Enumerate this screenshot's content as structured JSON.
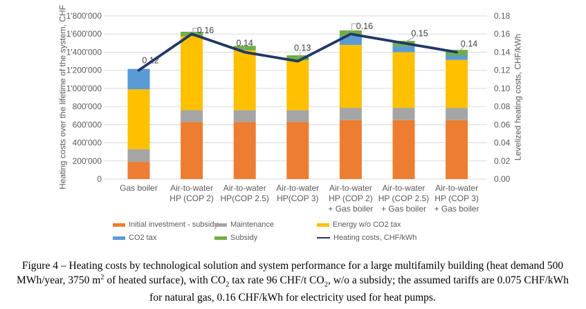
{
  "chart_data": {
    "type": "bar",
    "stacked": true,
    "line_overlay": true,
    "categories": [
      "Gas boiler",
      "Air-to-water\nHP (COP 2)",
      "Air-to-water\nHP(COP 2.5)",
      "Air-to-water\nHP(COP 3)",
      "Air-to-water\nHP (COP 2)\n+ Gas boiler",
      "Air-to-water\nHP (COP 2.5)\n+ Gas boiler",
      "Air-to-water\nHP (COP 3)\n+ Gas boiler"
    ],
    "series": [
      {
        "name": "Initial investment - subsidy",
        "color": "#ED7D31",
        "values": [
          190000,
          630000,
          630000,
          630000,
          650000,
          650000,
          650000
        ]
      },
      {
        "name": "Maintenance",
        "color": "#A5A5A5",
        "values": [
          140000,
          130000,
          130000,
          130000,
          135000,
          135000,
          135000
        ]
      },
      {
        "name": "Energy w/o CO2 tax",
        "color": "#FFC000",
        "values": [
          660000,
          815000,
          660000,
          550000,
          695000,
          615000,
          530000
        ]
      },
      {
        "name": "CO2 tax",
        "color": "#5B9BD5",
        "values": [
          225000,
          0,
          0,
          0,
          100000,
          65000,
          50000
        ]
      },
      {
        "name": "Subsidy",
        "color": "#70AD47",
        "values": [
          0,
          50000,
          50000,
          55000,
          60000,
          60000,
          60000
        ]
      }
    ],
    "bar_totals": [
      1215000,
      1625000,
      1470000,
      1365000,
      1640000,
      1525000,
      1425000
    ],
    "line_series": {
      "name": "Heating costs, CHF/kWh",
      "color": "#203864",
      "values": [
        0.12,
        0.16,
        0.14,
        0.13,
        0.16,
        0.15,
        0.14
      ],
      "labels": [
        "0.12",
        "0.16",
        "0.14",
        "0.13",
        "0.16",
        "0.15",
        "0.14"
      ]
    },
    "left_axis": {
      "title": "Heating costs over the lifetime of the system, CHF",
      "min": 0,
      "max": 1800000,
      "step": 200000,
      "ticks": [
        "1'800'000",
        "1'600'000",
        "1'400'000",
        "1'200'000",
        "1'000'000",
        "800'000",
        "600'000",
        "400'000",
        "200'000",
        "0"
      ]
    },
    "right_axis": {
      "title": "Levelized heating costs, CHF/kWh",
      "min": 0.0,
      "max": 0.18,
      "step": 0.02,
      "ticks": [
        "0.18",
        "0.16",
        "0.14",
        "0.12",
        "0.10",
        "0.08",
        "0.06",
        "0.04",
        "0.02",
        "0.00"
      ]
    },
    "grid": "horizontal",
    "legend_position": "bottom",
    "legend": [
      {
        "label": "Initial investment - subsidy",
        "color": "#ED7D31",
        "marker": "bar"
      },
      {
        "label": "Maintenance",
        "color": "#A5A5A5",
        "marker": "bar"
      },
      {
        "label": "Energy w/o CO2 tax",
        "color": "#FFC000",
        "marker": "bar"
      },
      {
        "label": "CO2 tax",
        "color": "#5B9BD5",
        "marker": "bar"
      },
      {
        "label": "Subsidy",
        "color": "#70AD47",
        "marker": "bar"
      },
      {
        "label": "Heating costs, CHF/kWh",
        "color": "#203864",
        "marker": "line"
      }
    ]
  },
  "caption": {
    "parts": [
      {
        "t": "Figure 4 – Heating costs by technological solution and system performance for a large multifamily building (heat demand 500 MWh/year, 3750 m"
      },
      {
        "t": "2",
        "s": "sup"
      },
      {
        "t": " of heated surface), with CO"
      },
      {
        "t": "2",
        "s": "sub"
      },
      {
        "t": " tax rate 96 CHF/t CO"
      },
      {
        "t": "2",
        "s": "sub"
      },
      {
        "t": ", w/o a subsidy; the assumed tariffs are 0.075 CHF/kWh for natural gas, 0.16 CHF/kWh for electricity used for heat pumps."
      }
    ]
  },
  "colors": {
    "background": "#FFFFFF",
    "gridline": "#D9D9D9",
    "tick_text": "#595959",
    "data_label": "#404040",
    "leader_line": "#A6A6A6"
  }
}
